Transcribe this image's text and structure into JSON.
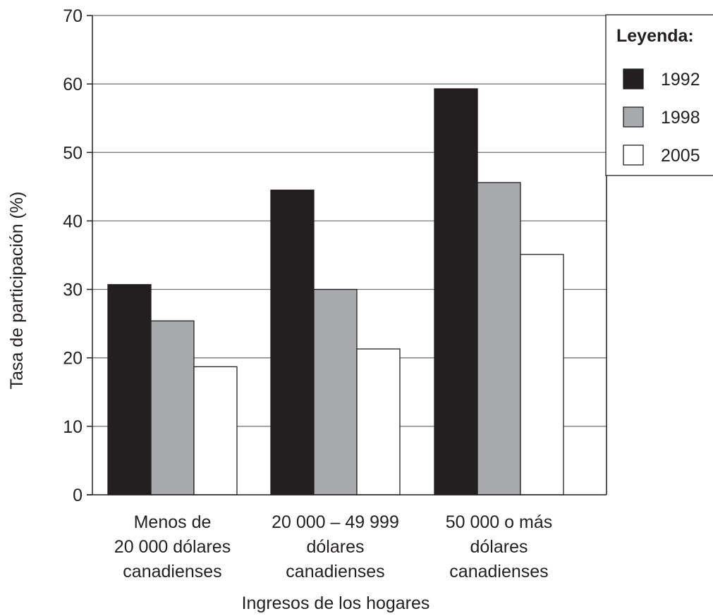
{
  "chart_data": {
    "type": "bar",
    "title": "",
    "xlabel": "Ingresos de los hogares",
    "ylabel": "Tasa de participación (%)",
    "ylim": [
      0,
      70
    ],
    "yticks": [
      0,
      10,
      20,
      30,
      40,
      50,
      60,
      70
    ],
    "grid": true,
    "legend_placement": "top-right",
    "legend_title": "Leyenda:",
    "categories": [
      [
        "Menos de",
        "20 000 dólares",
        "canadienses"
      ],
      [
        "20 000 – 49 999",
        "dólares",
        "canadienses"
      ],
      [
        "50 000 o más",
        "dólares",
        "canadienses"
      ]
    ],
    "series": [
      {
        "name": "1992",
        "color": "#231f20",
        "values": [
          30.7,
          44.5,
          59.3
        ]
      },
      {
        "name": "1998",
        "color": "#a7a9ac",
        "values": [
          25.4,
          30.0,
          45.6
        ]
      },
      {
        "name": "2005",
        "color": "#ffffff",
        "values": [
          18.7,
          21.3,
          35.1
        ]
      }
    ]
  }
}
